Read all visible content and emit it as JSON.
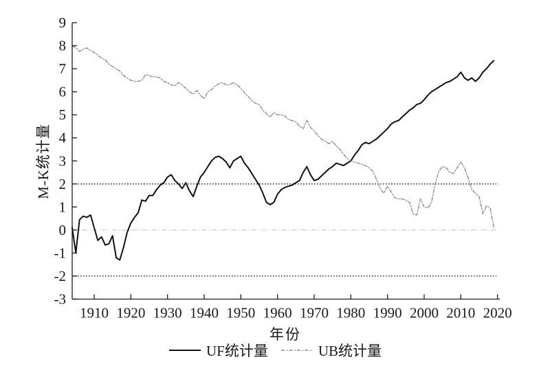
{
  "figure": {
    "y_axis_title": "M-K统计量",
    "x_axis_title": "年份"
  },
  "legend": [
    {
      "id": "uf",
      "label": "UF统计量"
    },
    {
      "id": "ub",
      "label": "UB统计量"
    }
  ],
  "chart_data": {
    "type": "line",
    "title": "",
    "xlabel": "年份",
    "ylabel": "M-K统计量",
    "xlim": [
      1904,
      2020
    ],
    "ylim": [
      -3,
      9
    ],
    "xticks": [
      1910,
      1920,
      1930,
      1940,
      1950,
      1960,
      1970,
      1980,
      1990,
      2000,
      2010,
      2020
    ],
    "yticks": [
      -3,
      -2,
      -1,
      0,
      1,
      2,
      3,
      4,
      5,
      6,
      7,
      8,
      9
    ],
    "grid": false,
    "legend_position": "bottom",
    "x_start": 1904,
    "x_step": 1,
    "reference_lines": [
      {
        "id": "upper-critical",
        "value": 2,
        "style": "dotted",
        "color": "#1a1a1a",
        "width": 1.4
      },
      {
        "id": "lower-critical",
        "value": -2,
        "style": "dotted",
        "color": "#1a1a1a",
        "width": 1.4
      },
      {
        "id": "zero",
        "value": 0,
        "style": "dash-dot",
        "color": "#bcbcbc",
        "width": 1.1
      }
    ],
    "series": [
      {
        "id": "uf",
        "name": "UF统计量",
        "color": "#111111",
        "width": 2,
        "dash": null,
        "values": [
          0.1,
          -1.0,
          0.45,
          0.6,
          0.55,
          0.65,
          0.1,
          -0.45,
          -0.3,
          -0.65,
          -0.6,
          -0.25,
          -1.2,
          -1.3,
          -0.75,
          -0.1,
          0.3,
          0.55,
          0.75,
          1.3,
          1.25,
          1.5,
          1.5,
          1.75,
          1.95,
          2.05,
          2.3,
          2.4,
          2.15,
          2.0,
          1.8,
          2.05,
          1.7,
          1.45,
          1.9,
          2.3,
          2.5,
          2.75,
          3.0,
          3.15,
          3.2,
          3.1,
          2.95,
          2.7,
          3.0,
          3.1,
          3.2,
          2.9,
          2.7,
          2.45,
          2.2,
          1.95,
          1.6,
          1.2,
          1.1,
          1.2,
          1.55,
          1.75,
          1.85,
          1.9,
          1.95,
          2.05,
          2.15,
          2.5,
          2.75,
          2.4,
          2.15,
          2.2,
          2.35,
          2.5,
          2.65,
          2.75,
          2.9,
          2.85,
          2.8,
          2.9,
          3.0,
          3.25,
          3.45,
          3.7,
          3.8,
          3.75,
          3.85,
          3.95,
          4.1,
          4.25,
          4.4,
          4.6,
          4.7,
          4.75,
          4.9,
          5.05,
          5.2,
          5.3,
          5.45,
          5.5,
          5.65,
          5.85,
          6.0,
          6.1,
          6.2,
          6.3,
          6.4,
          6.45,
          6.55,
          6.65,
          6.85,
          6.6,
          6.5,
          6.6,
          6.45,
          6.6,
          6.85,
          7.0,
          7.2,
          7.35
        ]
      },
      {
        "id": "ub",
        "name": "UB统计量",
        "color": "#8c8c8c",
        "width": 1.4,
        "dash": [
          5,
          2.5,
          1.5,
          2.5
        ],
        "values": [
          8.0,
          7.9,
          7.75,
          7.85,
          7.9,
          7.8,
          7.7,
          7.6,
          7.45,
          7.4,
          7.2,
          7.1,
          7.0,
          6.9,
          6.7,
          6.6,
          6.5,
          6.45,
          6.45,
          6.5,
          6.75,
          6.7,
          6.65,
          6.65,
          6.6,
          6.45,
          6.4,
          6.3,
          6.25,
          6.4,
          6.3,
          6.15,
          6.0,
          5.9,
          6.05,
          5.85,
          5.7,
          6.0,
          6.1,
          6.25,
          6.35,
          6.4,
          6.3,
          6.3,
          6.4,
          6.3,
          6.15,
          5.95,
          5.8,
          5.6,
          5.5,
          5.45,
          5.2,
          5.05,
          4.9,
          5.1,
          5.0,
          5.0,
          4.95,
          4.8,
          4.75,
          4.7,
          4.5,
          4.4,
          4.75,
          4.45,
          4.3,
          4.1,
          3.95,
          3.85,
          3.75,
          3.85,
          3.65,
          3.5,
          3.3,
          3.1,
          3.0,
          2.95,
          2.9,
          2.85,
          2.8,
          2.7,
          2.55,
          2.2,
          1.8,
          1.6,
          1.9,
          1.65,
          1.4,
          1.35,
          1.35,
          1.3,
          1.2,
          0.7,
          0.65,
          1.35,
          1.0,
          0.95,
          1.2,
          2.0,
          2.55,
          2.75,
          2.7,
          2.5,
          2.45,
          2.7,
          2.95,
          2.7,
          2.25,
          1.75,
          1.6,
          1.45,
          0.7,
          1.05,
          0.95,
          0.1
        ]
      }
    ]
  }
}
